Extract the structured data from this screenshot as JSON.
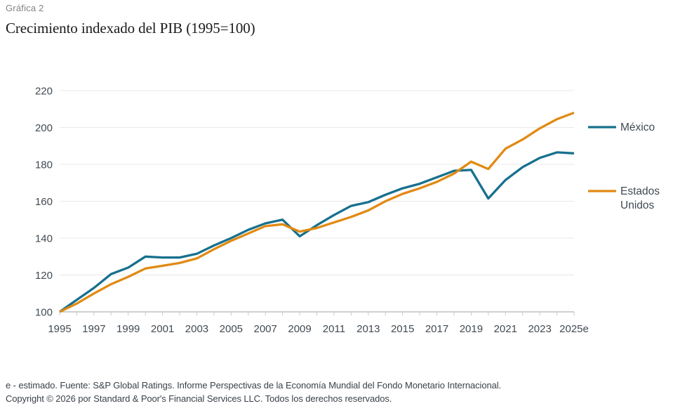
{
  "header": {
    "eyebrow": "Gráfica 2",
    "title": "Crecimiento indexado del PIB (1995=100)"
  },
  "chart_data": {
    "type": "line",
    "title": "Crecimiento indexado del PIB (1995=100)",
    "x": [
      1995,
      1996,
      1997,
      1998,
      1999,
      2000,
      2001,
      2002,
      2003,
      2004,
      2005,
      2006,
      2007,
      2008,
      2009,
      2010,
      2011,
      2012,
      2013,
      2014,
      2015,
      2016,
      2017,
      2018,
      2019,
      2020,
      2021,
      2022,
      2023,
      2024,
      2025
    ],
    "x_tick_labels": [
      "1995",
      "1997",
      "1999",
      "2001",
      "2003",
      "2005",
      "2007",
      "2009",
      "2011",
      "2013",
      "2015",
      "2017",
      "2019",
      "2021",
      "2023",
      "2025e"
    ],
    "series": [
      {
        "name": "México",
        "color": "#17708e",
        "values": [
          100,
          106.5,
          113,
          120.5,
          124,
          130,
          129.5,
          129.5,
          131.5,
          136,
          140,
          144.5,
          148,
          150,
          141,
          147,
          152.5,
          157.5,
          159.5,
          163.5,
          167,
          169.5,
          173,
          176.5,
          177,
          161.5,
          171.5,
          178.5,
          183.5,
          186.5,
          186
        ]
      },
      {
        "name": "Estados Unidos",
        "color": "#e18a13",
        "values": [
          100,
          104.5,
          110,
          115,
          119,
          123.5,
          125,
          126.5,
          129,
          134,
          138.5,
          142.5,
          146.5,
          147.5,
          143.5,
          145.5,
          148.5,
          151.5,
          155,
          160,
          164,
          167,
          170.5,
          175,
          181.5,
          177.5,
          188.5,
          193.5,
          199.5,
          204.5,
          208
        ]
      }
    ],
    "ylim": [
      100,
      220
    ],
    "yticks": [
      100,
      120,
      140,
      160,
      180,
      200,
      220
    ],
    "grid": "horizontal",
    "legend_position": "right",
    "colors": {
      "gridline": "#e8e8e8",
      "axis_line": "#9b9fa3",
      "tick_mark": "#c9cbcd",
      "tick_label": "#414a52",
      "legend_label": "#414a52"
    }
  },
  "footer": {
    "line1": "e - estimado. Fuente: S&P Global Ratings. Informe Perspectivas de la Economía Mundial del Fondo Monetario Internacional.",
    "line2": "Copyright © 2026 por Standard & Poor's Financial Services LLC. Todos los derechos reservados."
  }
}
